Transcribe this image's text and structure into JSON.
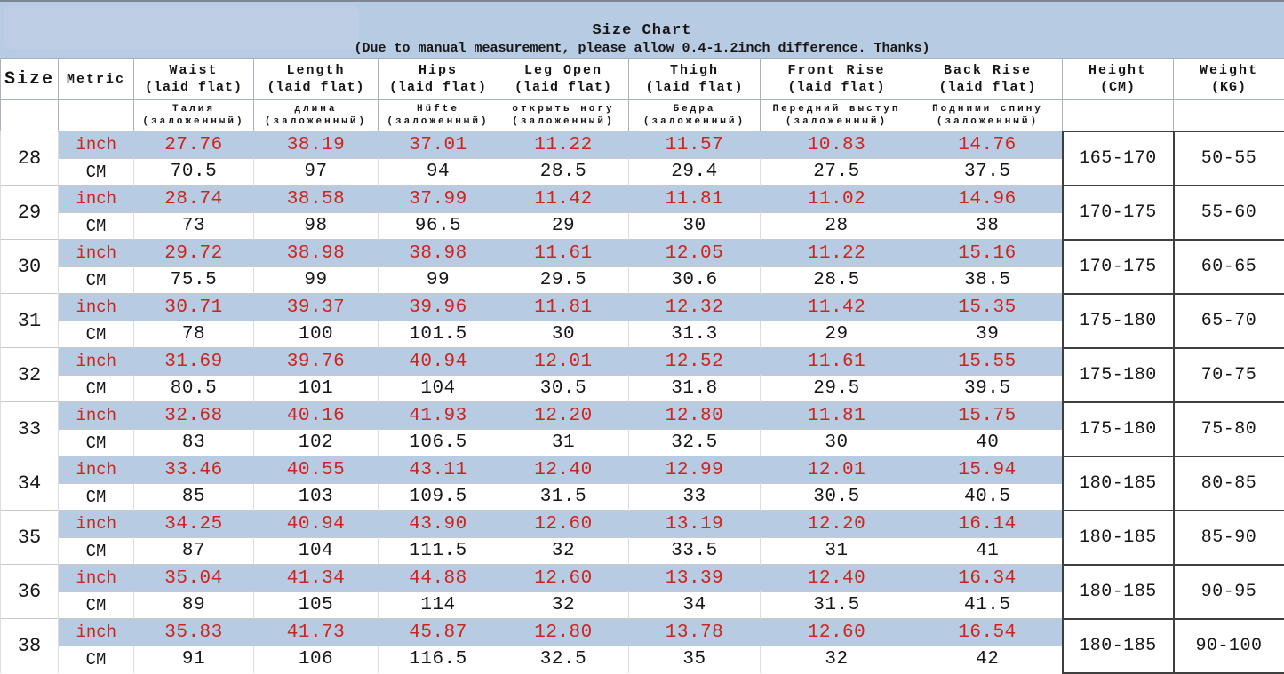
{
  "banner": {
    "title": "Size Chart",
    "subtitle": "(Due to manual measurement, please allow 0.4-1.2inch difference. Thanks)"
  },
  "columns": [
    {
      "id": "size",
      "line1": "Size",
      "line2": "",
      "sub1": "",
      "sub2": ""
    },
    {
      "id": "metric",
      "line1": "Metric",
      "line2": "",
      "sub1": "",
      "sub2": ""
    },
    {
      "id": "waist",
      "line1": "Waist",
      "line2": "(laid flat)",
      "sub1": "Талия",
      "sub2": "(заложенный)"
    },
    {
      "id": "length",
      "line1": "Length",
      "line2": "(laid flat)",
      "sub1": "длина",
      "sub2": "(заложенный)"
    },
    {
      "id": "hips",
      "line1": "Hips",
      "line2": "(laid flat)",
      "sub1": "Hüfte",
      "sub2": "(заложенный)"
    },
    {
      "id": "leg-open",
      "line1": "Leg Open",
      "line2": "(laid flat)",
      "sub1": "открыть ногу",
      "sub2": "(заложенный)"
    },
    {
      "id": "thigh",
      "line1": "Thigh",
      "line2": "(laid flat)",
      "sub1": "Бедра",
      "sub2": "(заложенный)"
    },
    {
      "id": "front-rise",
      "line1": "Front Rise",
      "line2": "(laid flat)",
      "sub1": "Передний выступ",
      "sub2": "(заложенный)"
    },
    {
      "id": "back-rise",
      "line1": "Back Rise",
      "line2": "(laid flat)",
      "sub1": "Подними спину",
      "sub2": "(заложенный)"
    },
    {
      "id": "height",
      "line1": "Height",
      "line2": "(CM)",
      "sub1": "",
      "sub2": ""
    },
    {
      "id": "weight",
      "line1": "Weight",
      "line2": "(KG)",
      "sub1": "",
      "sub2": ""
    }
  ],
  "metric_labels": {
    "inch": "inch",
    "cm": "CM"
  },
  "rows": [
    {
      "size": "28",
      "inch": [
        "27.76",
        "38.19",
        "37.01",
        "11.22",
        "11.57",
        "10.83",
        "14.76"
      ],
      "cm": [
        "70.5",
        "97",
        "94",
        "28.5",
        "29.4",
        "27.5",
        "37.5"
      ],
      "height": "165-170",
      "weight": "50-55"
    },
    {
      "size": "29",
      "inch": [
        "28.74",
        "38.58",
        "37.99",
        "11.42",
        "11.81",
        "11.02",
        "14.96"
      ],
      "cm": [
        "73",
        "98",
        "96.5",
        "29",
        "30",
        "28",
        "38"
      ],
      "height": "170-175",
      "weight": "55-60"
    },
    {
      "size": "30",
      "inch": [
        "29.72",
        "38.98",
        "38.98",
        "11.61",
        "12.05",
        "11.22",
        "15.16"
      ],
      "cm": [
        "75.5",
        "99",
        "99",
        "29.5",
        "30.6",
        "28.5",
        "38.5"
      ],
      "height": "170-175",
      "weight": "60-65"
    },
    {
      "size": "31",
      "inch": [
        "30.71",
        "39.37",
        "39.96",
        "11.81",
        "12.32",
        "11.42",
        "15.35"
      ],
      "cm": [
        "78",
        "100",
        "101.5",
        "30",
        "31.3",
        "29",
        "39"
      ],
      "height": "175-180",
      "weight": "65-70"
    },
    {
      "size": "32",
      "inch": [
        "31.69",
        "39.76",
        "40.94",
        "12.01",
        "12.52",
        "11.61",
        "15.55"
      ],
      "cm": [
        "80.5",
        "101",
        "104",
        "30.5",
        "31.8",
        "29.5",
        "39.5"
      ],
      "height": "175-180",
      "weight": "70-75"
    },
    {
      "size": "33",
      "inch": [
        "32.68",
        "40.16",
        "41.93",
        "12.20",
        "12.80",
        "11.81",
        "15.75"
      ],
      "cm": [
        "83",
        "102",
        "106.5",
        "31",
        "32.5",
        "30",
        "40"
      ],
      "height": "175-180",
      "weight": "75-80"
    },
    {
      "size": "34",
      "inch": [
        "33.46",
        "40.55",
        "43.11",
        "12.40",
        "12.99",
        "12.01",
        "15.94"
      ],
      "cm": [
        "85",
        "103",
        "109.5",
        "31.5",
        "33",
        "30.5",
        "40.5"
      ],
      "height": "180-185",
      "weight": "80-85"
    },
    {
      "size": "35",
      "inch": [
        "34.25",
        "40.94",
        "43.90",
        "12.60",
        "13.19",
        "12.20",
        "16.14"
      ],
      "cm": [
        "87",
        "104",
        "111.5",
        "32",
        "33.5",
        "31",
        "41"
      ],
      "height": "180-185",
      "weight": "85-90"
    },
    {
      "size": "36",
      "inch": [
        "35.04",
        "41.34",
        "44.88",
        "12.60",
        "13.39",
        "12.40",
        "16.34"
      ],
      "cm": [
        "89",
        "105",
        "114",
        "32",
        "34",
        "31.5",
        "41.5"
      ],
      "height": "180-185",
      "weight": "90-95"
    },
    {
      "size": "38",
      "inch": [
        "35.83",
        "41.73",
        "45.87",
        "12.80",
        "13.78",
        "12.60",
        "16.54"
      ],
      "cm": [
        "91",
        "106",
        "116.5",
        "32.5",
        "35",
        "32",
        "42"
      ],
      "height": "180-185",
      "weight": "90-100"
    }
  ],
  "colors": {
    "band_blue": "#b7cbe3",
    "value_red": "#cd241b"
  }
}
